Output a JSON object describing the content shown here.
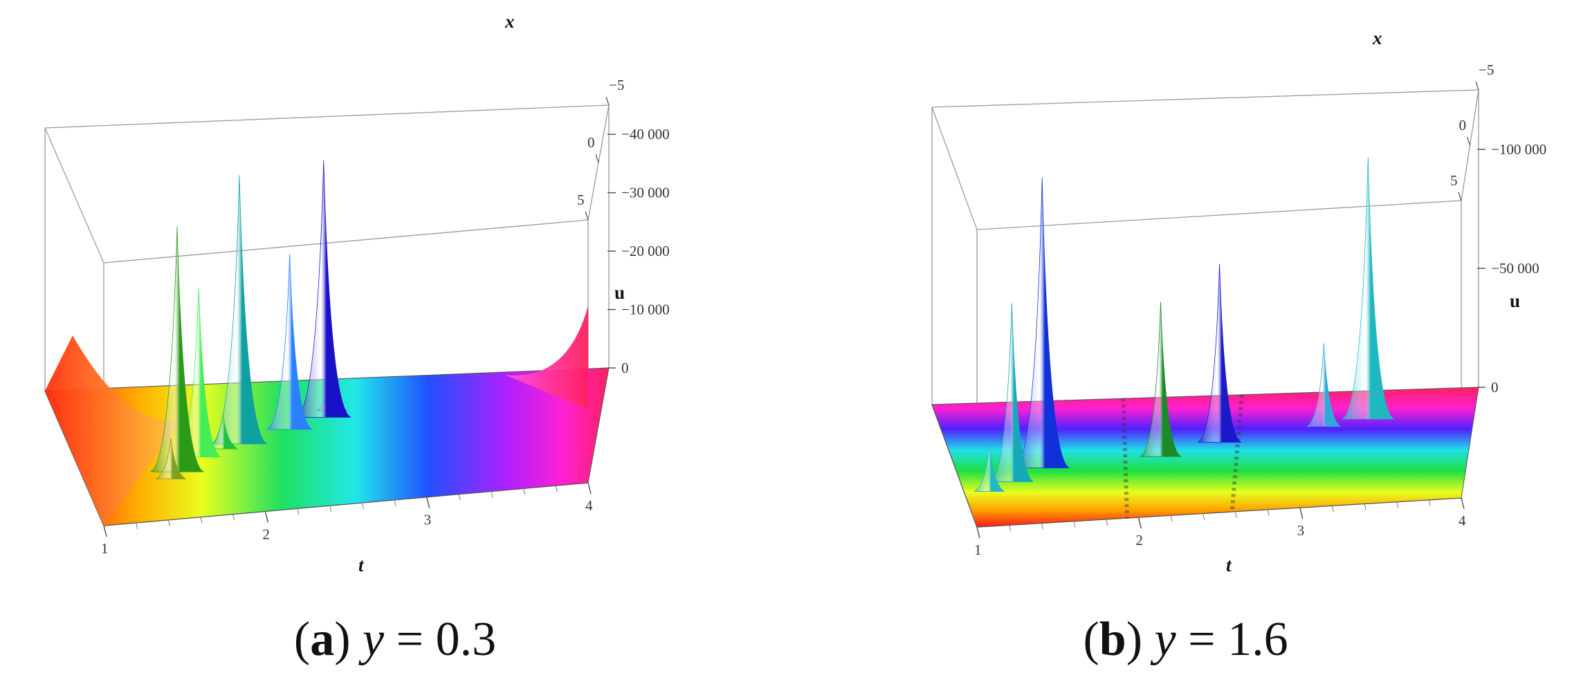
{
  "chart_data": [
    {
      "type": "surface3d",
      "panel": "a",
      "caption": {
        "tag": "a",
        "var": "y",
        "eq": "=",
        "value": "0.3"
      },
      "t_axis": {
        "label": "t",
        "ticks": [
          "1",
          "2",
          "3",
          "4"
        ],
        "range": [
          1,
          4
        ]
      },
      "x_axis": {
        "label": "x",
        "ticks": [
          "5",
          "0",
          "−5"
        ],
        "range": [
          5,
          -5
        ]
      },
      "u_axis": {
        "label": "u",
        "ticks": [
          "0",
          "10 000",
          "20 000",
          "30 000",
          "40 000"
        ],
        "range": [
          0,
          45000
        ]
      },
      "peaks": [
        {
          "t": 1.55,
          "x": 1.5,
          "u": 42000,
          "color": "#2a9a18"
        },
        {
          "t": 1.7,
          "x": 0.5,
          "u": 29000,
          "color": "#44ee55"
        },
        {
          "t": 1.95,
          "x": -0.3,
          "u": 46000,
          "color": "#0fa0a0"
        },
        {
          "t": 2.25,
          "x": -1.2,
          "u": 30000,
          "color": "#2b80ff"
        },
        {
          "t": 2.45,
          "x": -2.0,
          "u": 44000,
          "color": "#1a10c8"
        },
        {
          "t": 1.5,
          "x": 2.0,
          "u": 7000,
          "color": "#7fa020"
        },
        {
          "t": 1.85,
          "x": 0.0,
          "u": 6000,
          "color": "#22c040"
        },
        {
          "t": 2.5,
          "x": -2.5,
          "u": 7000,
          "color": "#3060d0"
        }
      ]
    },
    {
      "type": "surface3d",
      "panel": "b",
      "caption": {
        "tag": "b",
        "var": "y",
        "eq": "=",
        "value": "1.6"
      },
      "t_axis": {
        "label": "t",
        "ticks": [
          "1",
          "2",
          "3",
          "4"
        ],
        "range": [
          1,
          4
        ]
      },
      "x_axis": {
        "label": "x",
        "ticks": [
          "5",
          "0",
          "−5"
        ],
        "range": [
          5,
          -5
        ]
      },
      "u_axis": {
        "label": "u",
        "ticks": [
          "0",
          "50 000",
          "100 000"
        ],
        "range": [
          0,
          125000
        ]
      },
      "peaks": [
        {
          "t": 1.3,
          "x": 1.5,
          "u": 75000,
          "color": "#16a8b8"
        },
        {
          "t": 1.5,
          "x": 0.5,
          "u": 122000,
          "color": "#1030d8"
        },
        {
          "t": 2.2,
          "x": 0.0,
          "u": 65000,
          "color": "#1d8a2a"
        },
        {
          "t": 2.55,
          "x": -1.0,
          "u": 75000,
          "color": "#1a1ac8"
        },
        {
          "t": 3.4,
          "x": -2.5,
          "u": 110000,
          "color": "#20b8c0"
        },
        {
          "t": 3.15,
          "x": -2.0,
          "u": 35000,
          "color": "#30a8d8"
        },
        {
          "t": 1.15,
          "x": 2.2,
          "u": 20000,
          "color": "#20b8c8"
        }
      ]
    }
  ]
}
